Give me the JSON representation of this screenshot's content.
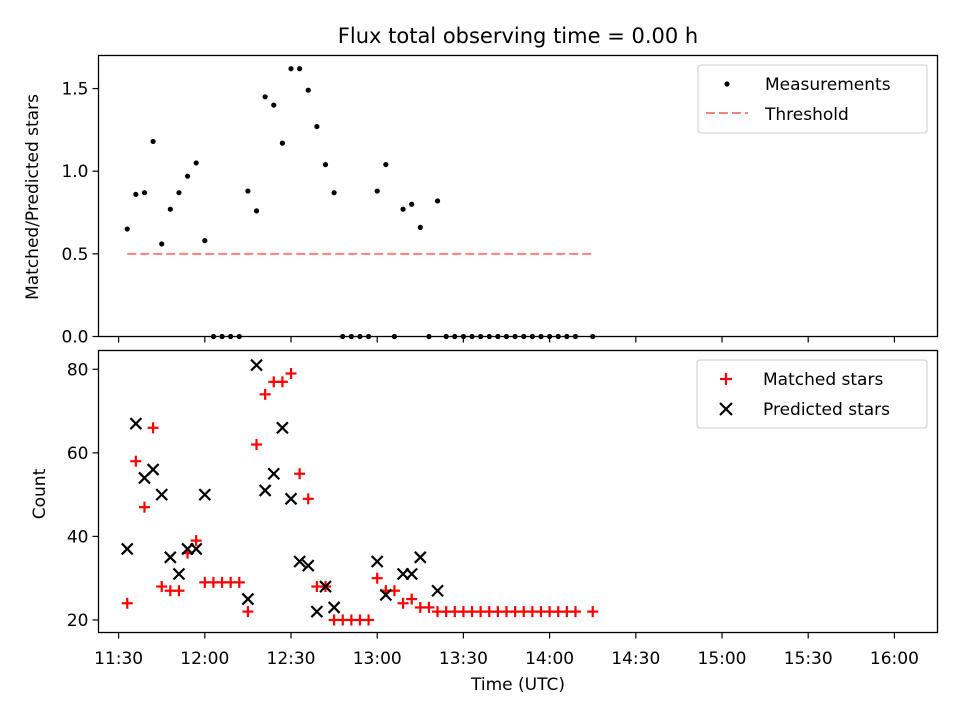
{
  "title": "Flux total observing time = 0.00 h",
  "xlabel": "Time (UTC)",
  "x_ticks": [
    "11:30",
    "12:00",
    "12:30",
    "13:00",
    "13:30",
    "14:00",
    "14:30",
    "15:00",
    "15:30",
    "16:00"
  ],
  "chart_data": [
    {
      "type": "scatter",
      "panel": "top",
      "ylabel": "Matched/Predicted stars",
      "xlim": [
        "11:23",
        "16:15"
      ],
      "ylim": [
        0,
        1.7
      ],
      "y_ticks": [
        "0.0",
        "0.5",
        "1.0",
        "1.5"
      ],
      "legend_position": "upper right",
      "series": [
        {
          "name": "Measurements",
          "style": "dot",
          "color": "#000000",
          "points": [
            [
              "11:33",
              0.65
            ],
            [
              "11:36",
              0.86
            ],
            [
              "11:39",
              0.87
            ],
            [
              "11:42",
              1.18
            ],
            [
              "11:45",
              0.56
            ],
            [
              "11:48",
              0.77
            ],
            [
              "11:51",
              0.87
            ],
            [
              "11:54",
              0.97
            ],
            [
              "11:57",
              1.05
            ],
            [
              "12:00",
              0.58
            ],
            [
              "12:03",
              0.0
            ],
            [
              "12:06",
              0.0
            ],
            [
              "12:09",
              0.0
            ],
            [
              "12:12",
              0.0
            ],
            [
              "12:15",
              0.88
            ],
            [
              "12:18",
              0.76
            ],
            [
              "12:21",
              1.45
            ],
            [
              "12:24",
              1.4
            ],
            [
              "12:27",
              1.17
            ],
            [
              "12:30",
              1.62
            ],
            [
              "12:33",
              1.62
            ],
            [
              "12:36",
              1.49
            ],
            [
              "12:39",
              1.27
            ],
            [
              "12:42",
              1.04
            ],
            [
              "12:45",
              0.87
            ],
            [
              "12:48",
              0.0
            ],
            [
              "12:51",
              0.0
            ],
            [
              "12:54",
              0.0
            ],
            [
              "12:57",
              0.0
            ],
            [
              "13:00",
              0.88
            ],
            [
              "13:03",
              1.04
            ],
            [
              "13:06",
              0.0
            ],
            [
              "13:09",
              0.77
            ],
            [
              "13:12",
              0.8
            ],
            [
              "13:15",
              0.66
            ],
            [
              "13:18",
              0.0
            ],
            [
              "13:21",
              0.82
            ],
            [
              "13:24",
              0.0
            ],
            [
              "13:27",
              0.0
            ],
            [
              "13:30",
              0.0
            ],
            [
              "13:33",
              0.0
            ],
            [
              "13:36",
              0.0
            ],
            [
              "13:39",
              0.0
            ],
            [
              "13:42",
              0.0
            ],
            [
              "13:45",
              0.0
            ],
            [
              "13:48",
              0.0
            ],
            [
              "13:51",
              0.0
            ],
            [
              "13:54",
              0.0
            ],
            [
              "13:57",
              0.0
            ],
            [
              "14:00",
              0.0
            ],
            [
              "14:03",
              0.0
            ],
            [
              "14:06",
              0.0
            ],
            [
              "14:09",
              0.0
            ],
            [
              "14:15",
              0.0
            ]
          ]
        },
        {
          "name": "Threshold",
          "style": "dashed-line",
          "color": "#ff7f7f",
          "points": [
            [
              "11:33",
              0.5
            ],
            [
              "14:15",
              0.5
            ]
          ]
        }
      ]
    },
    {
      "type": "scatter",
      "panel": "bottom",
      "ylabel": "Count",
      "xlim": [
        "11:23",
        "16:15"
      ],
      "ylim": [
        17,
        84.5
      ],
      "y_ticks": [
        "20",
        "40",
        "60",
        "80"
      ],
      "legend_position": "upper right",
      "series": [
        {
          "name": "Matched stars",
          "style": "plus",
          "color": "#ff0000",
          "points": [
            [
              "11:33",
              24
            ],
            [
              "11:36",
              58
            ],
            [
              "11:39",
              47
            ],
            [
              "11:42",
              66
            ],
            [
              "11:45",
              28
            ],
            [
              "11:48",
              27
            ],
            [
              "11:51",
              27
            ],
            [
              "11:54",
              36
            ],
            [
              "11:57",
              39
            ],
            [
              "12:00",
              29
            ],
            [
              "12:03",
              29
            ],
            [
              "12:06",
              29
            ],
            [
              "12:09",
              29
            ],
            [
              "12:12",
              29
            ],
            [
              "12:15",
              22
            ],
            [
              "12:18",
              62
            ],
            [
              "12:21",
              74
            ],
            [
              "12:24",
              77
            ],
            [
              "12:27",
              77
            ],
            [
              "12:30",
              79
            ],
            [
              "12:33",
              55
            ],
            [
              "12:36",
              49
            ],
            [
              "12:39",
              28
            ],
            [
              "12:42",
              28
            ],
            [
              "12:45",
              20
            ],
            [
              "12:48",
              20
            ],
            [
              "12:51",
              20
            ],
            [
              "12:54",
              20
            ],
            [
              "12:57",
              20
            ],
            [
              "13:00",
              30
            ],
            [
              "13:03",
              27
            ],
            [
              "13:06",
              27
            ],
            [
              "13:09",
              24
            ],
            [
              "13:12",
              25
            ],
            [
              "13:15",
              23
            ],
            [
              "13:18",
              23
            ],
            [
              "13:21",
              22
            ],
            [
              "13:24",
              22
            ],
            [
              "13:27",
              22
            ],
            [
              "13:30",
              22
            ],
            [
              "13:33",
              22
            ],
            [
              "13:36",
              22
            ],
            [
              "13:39",
              22
            ],
            [
              "13:42",
              22
            ],
            [
              "13:45",
              22
            ],
            [
              "13:48",
              22
            ],
            [
              "13:51",
              22
            ],
            [
              "13:54",
              22
            ],
            [
              "13:57",
              22
            ],
            [
              "14:00",
              22
            ],
            [
              "14:03",
              22
            ],
            [
              "14:06",
              22
            ],
            [
              "14:09",
              22
            ],
            [
              "14:15",
              22
            ]
          ]
        },
        {
          "name": "Predicted stars",
          "style": "x",
          "color": "#000000",
          "points": [
            [
              "11:33",
              37
            ],
            [
              "11:36",
              67
            ],
            [
              "11:39",
              54
            ],
            [
              "11:42",
              56
            ],
            [
              "11:45",
              50
            ],
            [
              "11:48",
              35
            ],
            [
              "11:51",
              31
            ],
            [
              "11:54",
              37
            ],
            [
              "11:57",
              37
            ],
            [
              "12:00",
              50
            ],
            [
              "12:15",
              25
            ],
            [
              "12:18",
              81
            ],
            [
              "12:21",
              51
            ],
            [
              "12:24",
              55
            ],
            [
              "12:27",
              66
            ],
            [
              "12:30",
              49
            ],
            [
              "12:33",
              34
            ],
            [
              "12:36",
              33
            ],
            [
              "12:39",
              22
            ],
            [
              "12:42",
              28
            ],
            [
              "12:45",
              23
            ],
            [
              "13:00",
              34
            ],
            [
              "13:03",
              26
            ],
            [
              "13:09",
              31
            ],
            [
              "13:12",
              31
            ],
            [
              "13:15",
              35
            ],
            [
              "13:21",
              27
            ]
          ]
        }
      ]
    }
  ]
}
